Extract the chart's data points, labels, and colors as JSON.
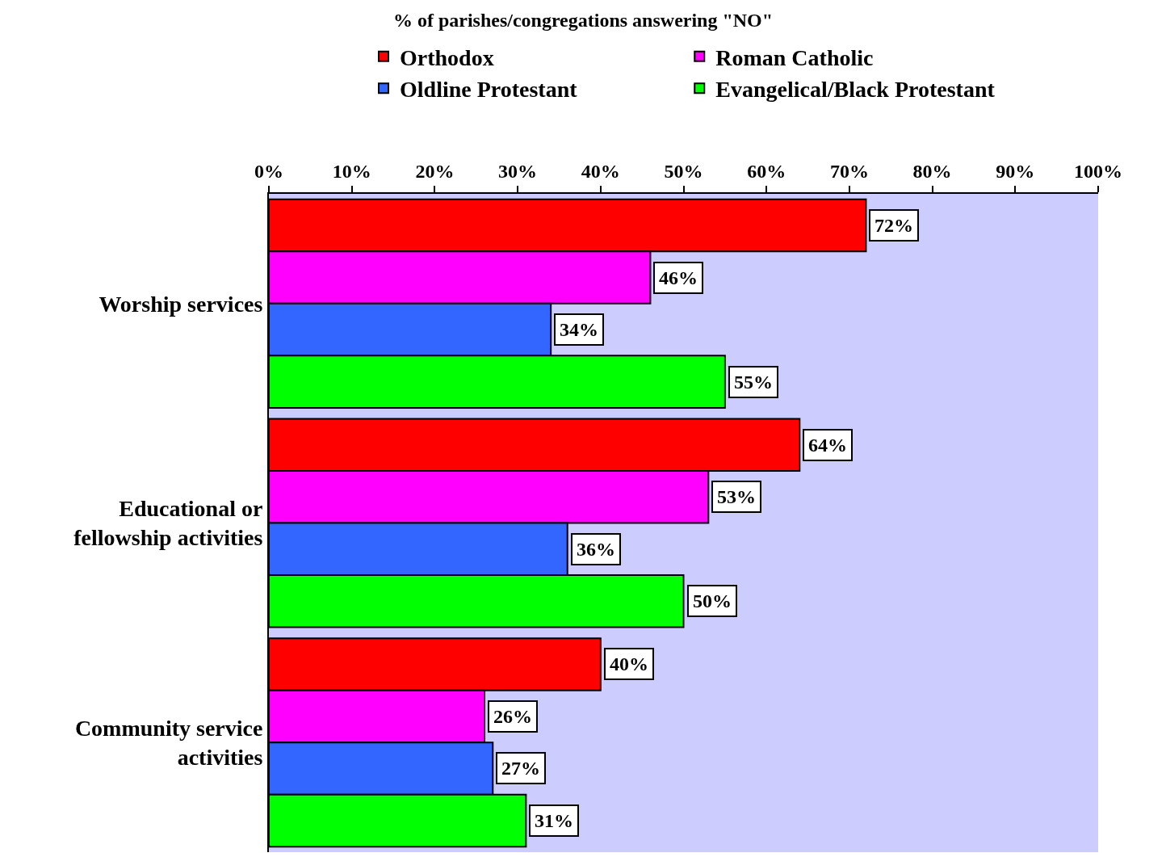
{
  "chart_data": {
    "type": "bar",
    "orientation": "horizontal",
    "title": "% of parishes/congregations answering \"NO\"",
    "categories": [
      "Worship services",
      "Educational or fellowship activities",
      "Community service activities"
    ],
    "series": [
      {
        "name": "Orthodox",
        "color": "#ff0000",
        "values": [
          72,
          64,
          40
        ],
        "value_labels": [
          "72%",
          "64%",
          "40%"
        ]
      },
      {
        "name": "Roman Catholic",
        "color": "#ff00ff",
        "values": [
          46,
          53,
          26
        ],
        "value_labels": [
          "46%",
          "53%",
          "26%"
        ]
      },
      {
        "name": "Oldline Protestant",
        "color": "#3366ff",
        "values": [
          34,
          36,
          27
        ],
        "value_labels": [
          "34%",
          "36%",
          "27%"
        ]
      },
      {
        "name": "Evangelical/Black Protestant",
        "color": "#00ff00",
        "values": [
          55,
          50,
          31
        ],
        "value_labels": [
          "55%",
          "50%",
          "31%"
        ]
      }
    ],
    "xlim": [
      0,
      100
    ],
    "xticks": [
      {
        "value": 0,
        "label": "0%"
      },
      {
        "value": 10,
        "label": "10%"
      },
      {
        "value": 20,
        "label": "20%"
      },
      {
        "value": 30,
        "label": "30%"
      },
      {
        "value": 40,
        "label": "40%"
      },
      {
        "value": 50,
        "label": "50%"
      },
      {
        "value": 60,
        "label": "60%"
      },
      {
        "value": 70,
        "label": "70%"
      },
      {
        "value": 80,
        "label": "80%"
      },
      {
        "value": 90,
        "label": "90%"
      },
      {
        "value": 100,
        "label": "100%"
      }
    ],
    "grid": false,
    "legend": "top"
  }
}
